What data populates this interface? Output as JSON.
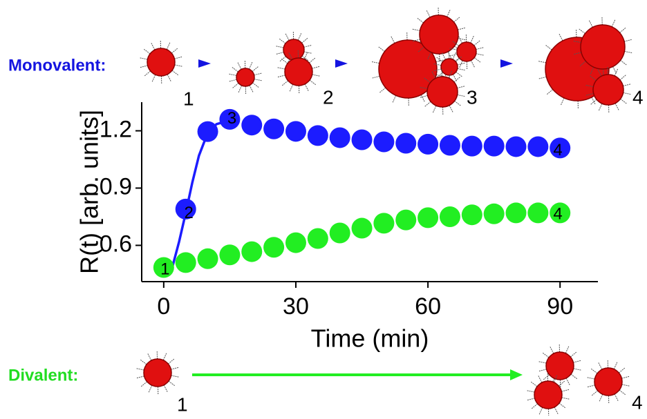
{
  "chart_data": {
    "type": "scatter",
    "xlabel": "Time (min)",
    "ylabel": "R(t) [arb. units]",
    "xlim": [
      -5,
      98.6
    ],
    "xticks": [
      0,
      30,
      60,
      90
    ],
    "ylim": [
      0.41,
      1.35
    ],
    "yticks": [
      0.6,
      0.9,
      1.2
    ],
    "grid": false,
    "series": [
      {
        "color": "#1c1cff",
        "x": [
          5,
          10,
          15,
          20,
          25,
          30,
          35,
          40,
          45,
          50,
          55,
          60,
          65,
          70,
          75,
          80,
          85,
          90
        ],
        "values": [
          0.79,
          1.196,
          1.26,
          1.23,
          1.21,
          1.197,
          1.175,
          1.164,
          1.153,
          1.142,
          1.135,
          1.13,
          1.124,
          1.12,
          1.12,
          1.117,
          1.117,
          1.11
        ]
      },
      {
        "color": "#22ee22",
        "x": [
          0,
          5,
          10,
          15,
          20,
          25,
          30,
          35,
          40,
          45,
          50,
          55,
          60,
          65,
          70,
          75,
          80,
          85,
          90
        ],
        "values": [
          0.484,
          0.51,
          0.53,
          0.55,
          0.567,
          0.59,
          0.614,
          0.636,
          0.665,
          0.69,
          0.716,
          0.733,
          0.745,
          0.75,
          0.76,
          0.765,
          0.77,
          0.77,
          0.77
        ]
      }
    ],
    "fit": {
      "color": "#1c1cff",
      "x": [
        2,
        3.5,
        5,
        6.5,
        8,
        10,
        12,
        15
      ],
      "values": [
        0.49,
        0.62,
        0.77,
        0.93,
        1.07,
        1.19,
        1.235,
        1.255
      ]
    },
    "annotations": [
      {
        "text": "1",
        "x": 0.3,
        "y": 0.47
      },
      {
        "text": "2",
        "x": 5.7,
        "y": 0.765
      },
      {
        "text": "3",
        "x": 15.5,
        "y": 1.26
      },
      {
        "text": "4",
        "x": 89.5,
        "y": 1.095
      },
      {
        "text": "4",
        "x": 89.5,
        "y": 0.76
      }
    ]
  },
  "schematic": {
    "monovalent": {
      "label": "Monovalent:",
      "stages": [
        "1",
        "2",
        "3",
        "4"
      ]
    },
    "divalent": {
      "label": "Divalent:",
      "stages": [
        "1",
        "4"
      ]
    }
  }
}
